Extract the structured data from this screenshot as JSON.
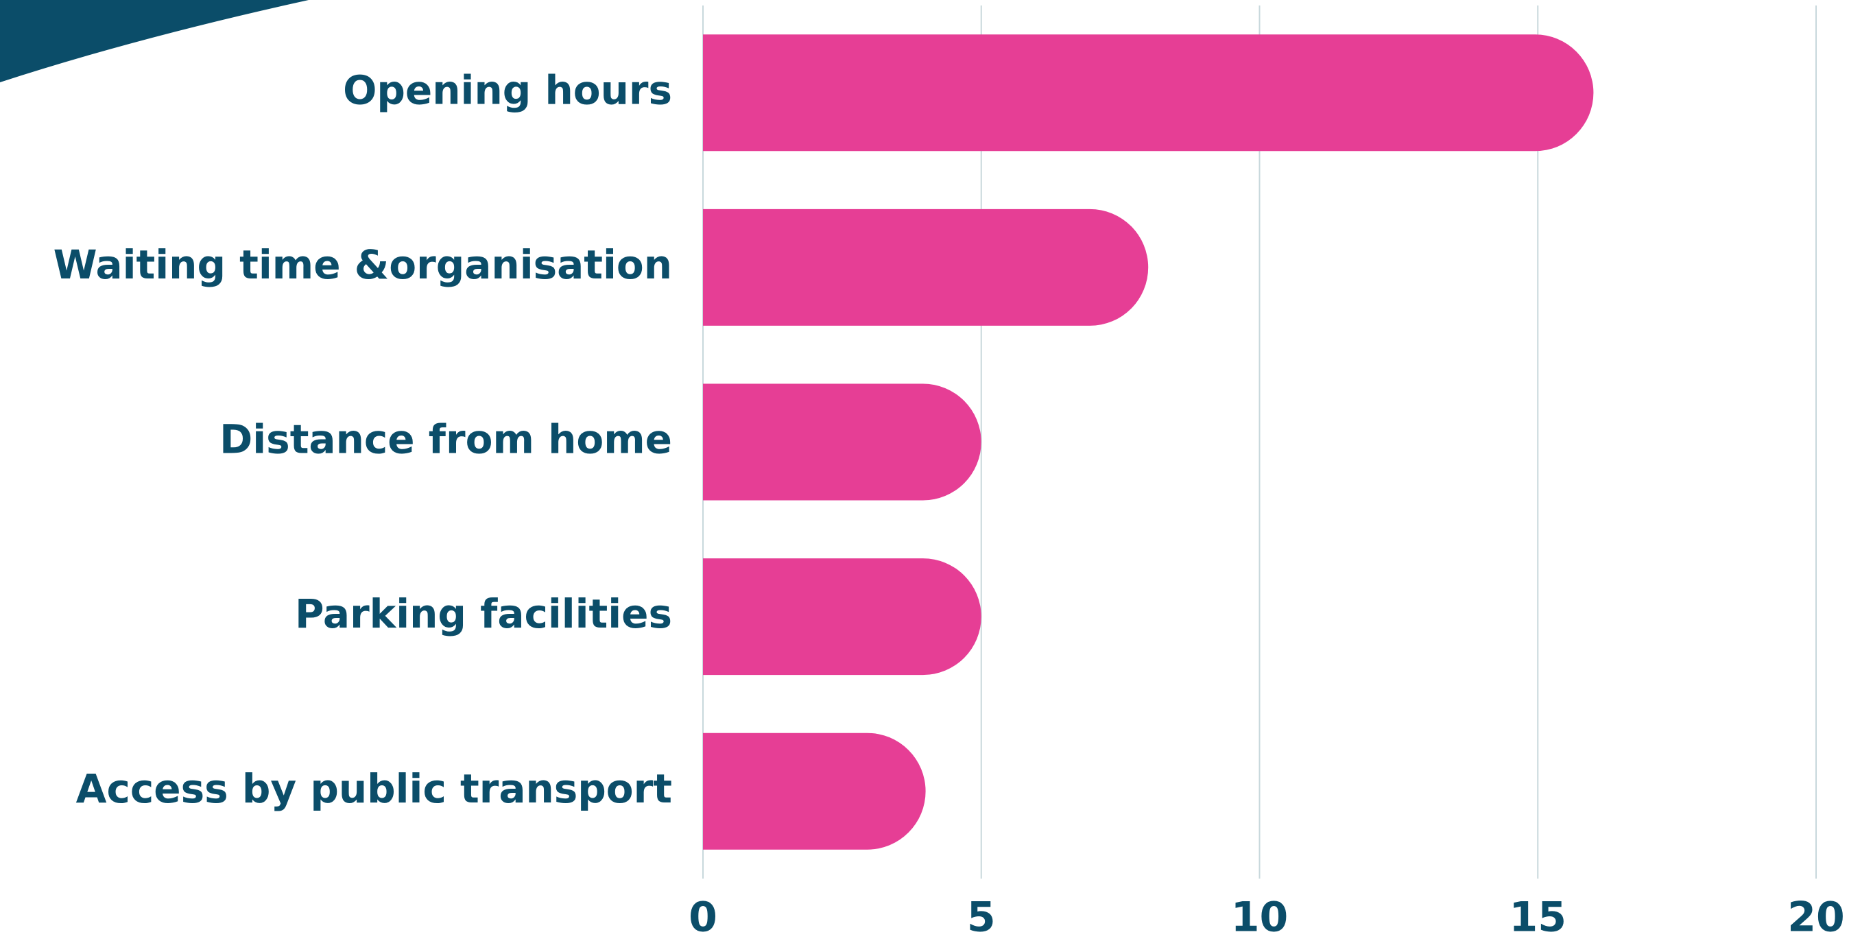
{
  "chart_data": {
    "type": "barh",
    "categories": [
      "Opening hours",
      "Waiting time &organisation",
      "Distance from home",
      "Parking facilities",
      "Access by public transport"
    ],
    "values": [
      16,
      8,
      5,
      5,
      4
    ],
    "color": "#e63e95",
    "xlim": [
      0,
      20
    ],
    "xticks": [
      0,
      5,
      10,
      15,
      20
    ],
    "grid": true
  }
}
